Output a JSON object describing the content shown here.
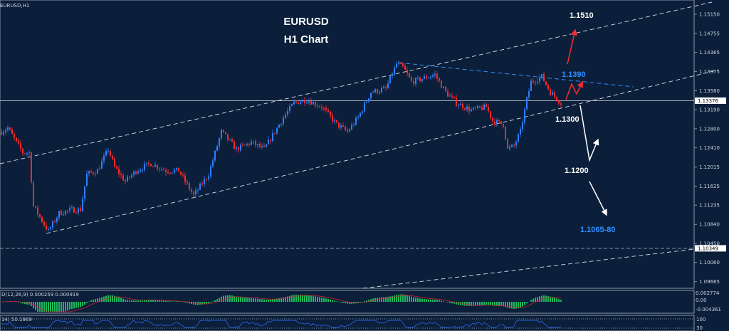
{
  "chart_data": {
    "type": "candlestick",
    "symbol_label": "EURUSD,H1",
    "title": "EURUSD",
    "subtitle": "H1 Chart",
    "ylim": [
      1.0953,
      1.1544
    ],
    "y_ticks": [
      "1.15150",
      "1.14755",
      "1.14365",
      "1.13975",
      "1.13580",
      "1.13190",
      "1.12800",
      "1.12410",
      "1.12015",
      "1.11625",
      "1.11235",
      "1.10840",
      "1.10450",
      "1.10060",
      "1.09665"
    ],
    "current_price_label": "1.13376",
    "support_line_label": "1.10349",
    "price_path": [
      [
        0,
        1.1274
      ],
      [
        3,
        1.1282
      ],
      [
        7,
        1.1252
      ],
      [
        10,
        1.1231
      ],
      [
        13,
        1.1231
      ],
      [
        15,
        1.1121
      ],
      [
        18,
        1.1099
      ],
      [
        22,
        1.107
      ],
      [
        27,
        1.1107
      ],
      [
        33,
        1.1114
      ],
      [
        37,
        1.1114
      ],
      [
        40,
        1.1187
      ],
      [
        45,
        1.1194
      ],
      [
        50,
        1.1238
      ],
      [
        53,
        1.1201
      ],
      [
        58,
        1.1172
      ],
      [
        63,
        1.1194
      ],
      [
        70,
        1.1209
      ],
      [
        77,
        1.1194
      ],
      [
        83,
        1.1194
      ],
      [
        90,
        1.1143
      ],
      [
        97,
        1.1187
      ],
      [
        103,
        1.1274
      ],
      [
        110,
        1.1238
      ],
      [
        117,
        1.1252
      ],
      [
        123,
        1.1238
      ],
      [
        132,
        1.1303
      ],
      [
        137,
        1.1333
      ],
      [
        143,
        1.134
      ],
      [
        150,
        1.1325
      ],
      [
        157,
        1.1289
      ],
      [
        162,
        1.1274
      ],
      [
        167,
        1.1303
      ],
      [
        173,
        1.1355
      ],
      [
        180,
        1.1362
      ],
      [
        185,
        1.1413
      ],
      [
        188,
        1.1406
      ],
      [
        192,
        1.1376
      ],
      [
        200,
        1.1387
      ],
      [
        203,
        1.1391
      ],
      [
        208,
        1.1355
      ],
      [
        213,
        1.1333
      ],
      [
        220,
        1.1318
      ],
      [
        227,
        1.1325
      ],
      [
        230,
        1.1296
      ],
      [
        235,
        1.1289
      ],
      [
        237,
        1.1238
      ],
      [
        240,
        1.1245
      ],
      [
        243,
        1.1274
      ],
      [
        246,
        1.134
      ],
      [
        248,
        1.1376
      ],
      [
        253,
        1.1387
      ],
      [
        257,
        1.1355
      ],
      [
        262,
        1.1333
      ]
    ],
    "annotations": [
      {
        "text": "1.1510",
        "color": "#ffffff"
      },
      {
        "text": "1.1390",
        "color": "#2f8fff"
      },
      {
        "text": "1.1300",
        "color": "#ffffff"
      },
      {
        "text": "1.1200",
        "color": "#ffffff"
      },
      {
        "text": "1.1065-80",
        "color": "#2f8fff"
      }
    ],
    "colors": {
      "up": "#2f7fff",
      "down": "#ff2a2a",
      "background": "#0b1f3a",
      "macd_hist": "#22dd66",
      "macd_signal": "#cc2233",
      "rsi": "#2a5fd8"
    },
    "macd": {
      "label": "D(12,26,9) 0.000259 0.000919",
      "ticks": [
        "0.002774",
        "0.00",
        "-0.004361"
      ]
    },
    "rsi": {
      "label": "14) 50.1969",
      "ticks": [
        "100",
        "30"
      ]
    }
  }
}
